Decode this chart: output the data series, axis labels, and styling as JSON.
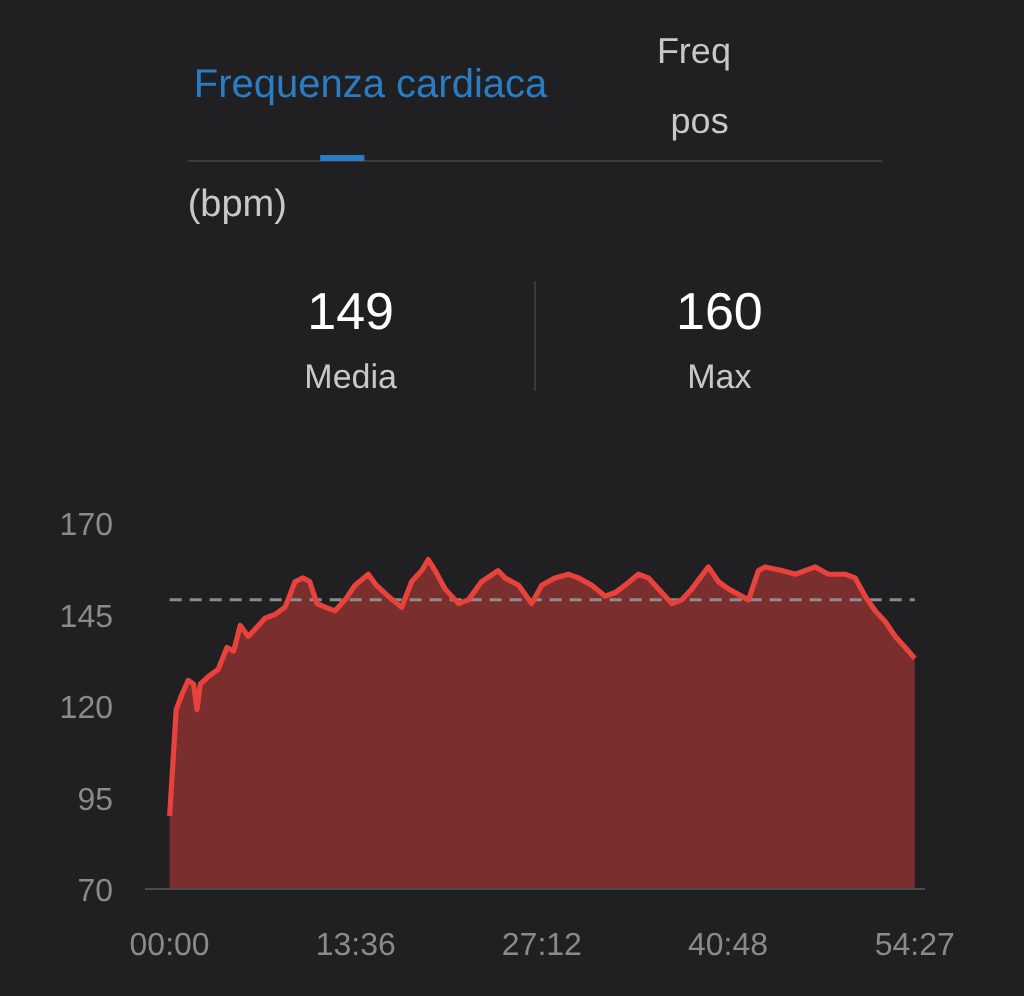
{
  "chart_data": {
    "type": "area",
    "title": "Frequenza cardiaca",
    "annotations": [
      "Freq",
      "pos",
      "(bpm)",
      "149",
      "Media",
      "160",
      "Max"
    ],
    "x": [
      0,
      0.25,
      0.48,
      0.88,
      1.36,
      1.75,
      2.0,
      2.24,
      2.82,
      3.55,
      4.19,
      4.68,
      5.16,
      5.75,
      6.24,
      6.97,
      7.7,
      8.44,
      9.17,
      9.75,
      10.23,
      10.77,
      11.36,
      12.09,
      12.82,
      13.55,
      14.52,
      15.1,
      15.98,
      16.96,
      17.69,
      18.42,
      18.9,
      19.4,
      20.13,
      21.1,
      21.83,
      22.8,
      24.0,
      24.5,
      25.5,
      26.46,
      27.19,
      28.17,
      29.14,
      29.87,
      30.85,
      31.83,
      32.56,
      33.29,
      34.25,
      34.99,
      35.96,
      36.7,
      37.43,
      38.16,
      39.37,
      40.1,
      40.83,
      42.3,
      43.03,
      43.52,
      44.74,
      45.72,
      47.18,
      48.14,
      49.37,
      50.1,
      50.83,
      51.56,
      52.3,
      53.03,
      53.76,
      54.45
    ],
    "series": [
      {
        "color": "#e8423d",
        "values": [
          90,
          105,
          119,
          123,
          127,
          126,
          119,
          126,
          128,
          130,
          136,
          135,
          142,
          139,
          141,
          144,
          145,
          147,
          154,
          155,
          154,
          148,
          147,
          146,
          149,
          153,
          156,
          153,
          150,
          147,
          154,
          157,
          160,
          157,
          152,
          148,
          149,
          154,
          157,
          155,
          153,
          148,
          153,
          155,
          156,
          155,
          153,
          150,
          151,
          153,
          156,
          155,
          151,
          148,
          149,
          152,
          158,
          154,
          152,
          149,
          157,
          158,
          157,
          156,
          158,
          156,
          156,
          155,
          150,
          146,
          143,
          139,
          136,
          133
        ]
      }
    ],
    "xlim": [
      -1.8,
      55.2
    ],
    "xticks": [
      {
        "value": 0,
        "label": "00:00"
      },
      {
        "value": 13.6,
        "label": "13:36"
      },
      {
        "value": 27.2,
        "label": "27:12"
      },
      {
        "value": 40.8,
        "label": "40:48"
      },
      {
        "value": 54.45,
        "label": "54:27"
      }
    ],
    "ylim": [
      70,
      170
    ],
    "yticks": [
      70,
      95,
      120,
      145,
      170
    ],
    "ref_lines": [
      {
        "axis": "y",
        "value": 149,
        "color": "#8c8c8c",
        "line_style": "dashed"
      }
    ]
  }
}
